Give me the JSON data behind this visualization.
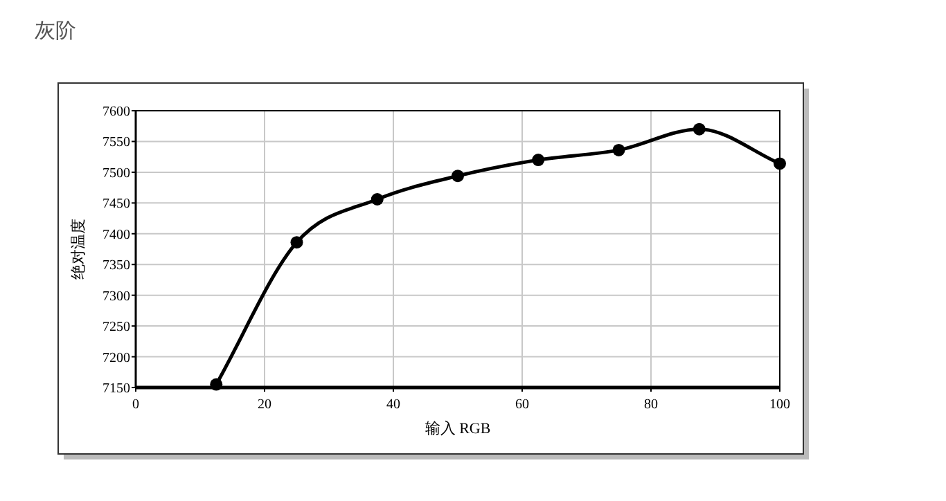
{
  "chart_data": {
    "type": "line",
    "title": "灰阶",
    "xlabel": "输入 RGB",
    "ylabel": "绝对温度",
    "x": [
      12.5,
      25,
      37.5,
      50,
      62.5,
      75,
      87.5,
      100
    ],
    "series": [
      {
        "color": "#000000",
        "values": [
          7155,
          7386,
          7456,
          7494,
          7520,
          7536,
          7570,
          7514
        ]
      }
    ],
    "xlim": [
      0,
      100
    ],
    "xticks": [
      0,
      20,
      40,
      60,
      80,
      100
    ],
    "ylim": [
      7150,
      7600
    ],
    "yticks": [
      7150,
      7200,
      7250,
      7300,
      7350,
      7400,
      7450,
      7500,
      7550,
      7600
    ],
    "grid": true,
    "marker": "circle",
    "line_style": "solid"
  }
}
